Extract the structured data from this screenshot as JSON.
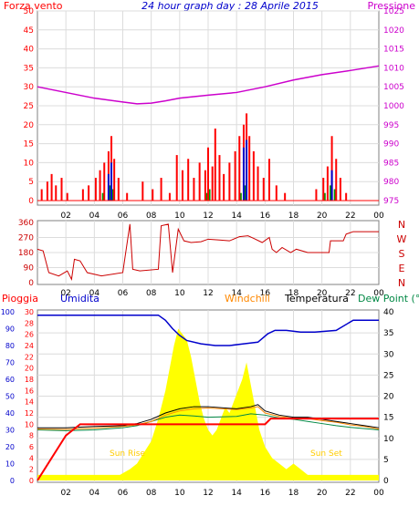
{
  "header": {
    "left_label": "Forza vento",
    "title": "24 hour graph day : 28 Aprile 2015",
    "right_label": "Pressione"
  },
  "colors": {
    "wind": "#ff0000",
    "gust_alt": "#0000cc",
    "wind_green": "#009900",
    "pressure": "#cc00cc",
    "direction": "#cc0000",
    "humidity": "#0000cc",
    "rain": "#ff0000",
    "windchill": "#ff8800",
    "temperature": "#000000",
    "dewpoint": "#008844",
    "sun": "#ffff00",
    "sun_label": "#ffcc00",
    "grid": "#dcdcdc"
  },
  "chart_data": [
    {
      "type": "line",
      "name": "wind-pressure",
      "xlabel": "",
      "x_ticks": [
        "02",
        "04",
        "06",
        "08",
        "10",
        "12",
        "14",
        "16",
        "18",
        "20",
        "22",
        "00"
      ],
      "xlim": [
        0,
        24
      ],
      "ylim_left": [
        0,
        50
      ],
      "y_ticks_left": [
        0,
        5,
        10,
        15,
        20,
        25,
        30,
        35,
        40,
        45,
        50
      ],
      "ylim_right": [
        975,
        1025
      ],
      "y_ticks_right": [
        975,
        980,
        985,
        990,
        995,
        1000,
        1005,
        1010,
        1015,
        1020,
        1025
      ],
      "pressure": [
        [
          0,
          1005.0
        ],
        [
          2,
          1003.5
        ],
        [
          4,
          1002.0
        ],
        [
          6,
          1001.0
        ],
        [
          7,
          1000.5
        ],
        [
          8,
          1000.7
        ],
        [
          9,
          1001.3
        ],
        [
          10,
          1002.0
        ],
        [
          12,
          1002.8
        ],
        [
          14,
          1003.5
        ],
        [
          16,
          1005.0
        ],
        [
          18,
          1006.8
        ],
        [
          20,
          1008.2
        ],
        [
          22,
          1009.3
        ],
        [
          24,
          1010.5
        ]
      ],
      "wind_peaks": [
        [
          0.3,
          3
        ],
        [
          0.7,
          5
        ],
        [
          1.0,
          7
        ],
        [
          1.3,
          4
        ],
        [
          1.7,
          6
        ],
        [
          2.1,
          2
        ],
        [
          3.2,
          3
        ],
        [
          3.6,
          4
        ],
        [
          4.1,
          6
        ],
        [
          4.4,
          8
        ],
        [
          4.7,
          10
        ],
        [
          5.0,
          13
        ],
        [
          5.2,
          17
        ],
        [
          5.4,
          11
        ],
        [
          5.7,
          6
        ],
        [
          6.3,
          2
        ],
        [
          7.4,
          5
        ],
        [
          8.1,
          3
        ],
        [
          8.7,
          6
        ],
        [
          9.3,
          2
        ],
        [
          9.8,
          12
        ],
        [
          10.2,
          8
        ],
        [
          10.6,
          11
        ],
        [
          11.0,
          6
        ],
        [
          11.4,
          10
        ],
        [
          11.8,
          8
        ],
        [
          12.0,
          14
        ],
        [
          12.3,
          9
        ],
        [
          12.5,
          19
        ],
        [
          12.8,
          12
        ],
        [
          13.1,
          7
        ],
        [
          13.5,
          10
        ],
        [
          13.9,
          13
        ],
        [
          14.2,
          17
        ],
        [
          14.5,
          20
        ],
        [
          14.7,
          23
        ],
        [
          14.9,
          17
        ],
        [
          15.2,
          13
        ],
        [
          15.5,
          9
        ],
        [
          15.9,
          6
        ],
        [
          16.3,
          11
        ],
        [
          16.8,
          4
        ],
        [
          17.4,
          2
        ],
        [
          19.6,
          3
        ],
        [
          20.1,
          6
        ],
        [
          20.4,
          9
        ],
        [
          20.7,
          17
        ],
        [
          21.0,
          11
        ],
        [
          21.3,
          6
        ],
        [
          21.7,
          2
        ]
      ],
      "gust_peaks": [
        [
          5.0,
          7
        ],
        [
          5.2,
          10
        ],
        [
          14.5,
          14
        ],
        [
          14.7,
          16
        ],
        [
          20.7,
          8
        ]
      ],
      "green_peaks": [
        [
          4.6,
          2
        ],
        [
          5.1,
          4
        ],
        [
          5.3,
          3
        ],
        [
          11.9,
          2
        ],
        [
          12.1,
          3
        ],
        [
          14.3,
          2
        ],
        [
          14.6,
          4
        ],
        [
          20.2,
          2
        ],
        [
          20.6,
          4
        ],
        [
          20.9,
          3
        ]
      ]
    },
    {
      "type": "line",
      "name": "wind-direction",
      "xlim": [
        0,
        24
      ],
      "ylim": [
        0,
        360
      ],
      "y_ticks": [
        0,
        90,
        180,
        270,
        360
      ],
      "compass": [
        "N",
        "W",
        "S",
        "E",
        "N"
      ],
      "x_ticks": [
        "02",
        "04",
        "06",
        "08",
        "10",
        "12",
        "14",
        "16",
        "18",
        "20",
        "22",
        "00"
      ],
      "values": [
        [
          0.0,
          200
        ],
        [
          0.4,
          190
        ],
        [
          0.8,
          60
        ],
        [
          1.5,
          40
        ],
        [
          2.1,
          70
        ],
        [
          2.4,
          20
        ],
        [
          2.6,
          140
        ],
        [
          3.0,
          130
        ],
        [
          3.5,
          60
        ],
        [
          4.5,
          40
        ],
        [
          6.0,
          60
        ],
        [
          6.5,
          350
        ],
        [
          6.7,
          80
        ],
        [
          7.2,
          70
        ],
        [
          8.5,
          80
        ],
        [
          8.7,
          340
        ],
        [
          9.2,
          350
        ],
        [
          9.5,
          60
        ],
        [
          9.9,
          320
        ],
        [
          10.3,
          250
        ],
        [
          10.8,
          240
        ],
        [
          11.5,
          245
        ],
        [
          12.0,
          260
        ],
        [
          12.8,
          255
        ],
        [
          13.5,
          250
        ],
        [
          14.2,
          275
        ],
        [
          14.8,
          280
        ],
        [
          15.2,
          265
        ],
        [
          15.8,
          240
        ],
        [
          16.3,
          270
        ],
        [
          16.5,
          200
        ],
        [
          16.8,
          180
        ],
        [
          17.2,
          210
        ],
        [
          17.8,
          180
        ],
        [
          18.2,
          200
        ],
        [
          19.0,
          180
        ],
        [
          20.5,
          180
        ],
        [
          20.6,
          250
        ],
        [
          21.5,
          250
        ],
        [
          21.7,
          290
        ],
        [
          22.2,
          305
        ],
        [
          24,
          305
        ]
      ]
    },
    {
      "type": "line",
      "name": "rain-humidity-temperature",
      "legend": [
        "Pioggia",
        "Umidita",
        "Windchill",
        "Temperatura",
        "Dew Point (°C"
      ],
      "xlim": [
        0,
        24
      ],
      "x_ticks": [
        "02",
        "04",
        "06",
        "08",
        "10",
        "12",
        "14",
        "16",
        "18",
        "20",
        "22",
        "00"
      ],
      "y_ticks_humidity": [
        0,
        10,
        20,
        30,
        40,
        50,
        60,
        70,
        80,
        90,
        100
      ],
      "y_ticks_rain": [
        0,
        2,
        4,
        6,
        8,
        10,
        12,
        14,
        16,
        18,
        20,
        22,
        24,
        26,
        28,
        30
      ],
      "y_ticks_temp": [
        0,
        5,
        10,
        15,
        20,
        25,
        30,
        35,
        40
      ],
      "ylim_temp": [
        0,
        40
      ],
      "sun_rise_label": "Sun Rise",
      "sun_set_label": "Sun Set",
      "humidity": [
        [
          0,
          98
        ],
        [
          8.5,
          98
        ],
        [
          9.0,
          95
        ],
        [
          9.5,
          90
        ],
        [
          10.0,
          86
        ],
        [
          10.5,
          83
        ],
        [
          11.5,
          81
        ],
        [
          12.5,
          80
        ],
        [
          13.5,
          80
        ],
        [
          14.5,
          81
        ],
        [
          15.5,
          82
        ],
        [
          16.2,
          87
        ],
        [
          16.7,
          89
        ],
        [
          17.5,
          89
        ],
        [
          18.5,
          88
        ],
        [
          19.5,
          88
        ],
        [
          21.0,
          89
        ],
        [
          22.2,
          95
        ],
        [
          24,
          95
        ]
      ],
      "rain_mm": [
        [
          0,
          0
        ],
        [
          0.5,
          2
        ],
        [
          1.0,
          4
        ],
        [
          1.5,
          6
        ],
        [
          2.0,
          8
        ],
        [
          2.5,
          9
        ],
        [
          3.0,
          10
        ],
        [
          5.0,
          10
        ],
        [
          9.0,
          10
        ],
        [
          14.0,
          10
        ],
        [
          16.0,
          10
        ],
        [
          16.4,
          11
        ],
        [
          24,
          11
        ]
      ],
      "temperature": [
        [
          0,
          12.5
        ],
        [
          2,
          12.5
        ],
        [
          4,
          12.8
        ],
        [
          6,
          13.0
        ],
        [
          7,
          13.5
        ],
        [
          8,
          14.5
        ],
        [
          9,
          16.0
        ],
        [
          10,
          17.0
        ],
        [
          11,
          17.5
        ],
        [
          12,
          17.5
        ],
        [
          14,
          17.0
        ],
        [
          15,
          17.5
        ],
        [
          15.5,
          18.0
        ],
        [
          16,
          16.5
        ],
        [
          17,
          15.5
        ],
        [
          18,
          15.0
        ],
        [
          19,
          15.0
        ],
        [
          20,
          14.5
        ],
        [
          21,
          14.0
        ],
        [
          22,
          13.5
        ],
        [
          23,
          13.0
        ],
        [
          24,
          12.5
        ]
      ],
      "windchill": [
        [
          0,
          12.2
        ],
        [
          2,
          12.1
        ],
        [
          4,
          12.4
        ],
        [
          6,
          12.8
        ],
        [
          7,
          13.2
        ],
        [
          8,
          14.0
        ],
        [
          9,
          15.5
        ],
        [
          10,
          16.5
        ],
        [
          11,
          17.0
        ],
        [
          12,
          17.2
        ],
        [
          14,
          16.8
        ],
        [
          15,
          17.2
        ],
        [
          15.5,
          17.5
        ],
        [
          16,
          16.0
        ],
        [
          17,
          15.2
        ],
        [
          18,
          14.7
        ],
        [
          19,
          14.7
        ],
        [
          20,
          14.2
        ],
        [
          21,
          13.8
        ],
        [
          22,
          13.2
        ],
        [
          23,
          12.8
        ],
        [
          24,
          12.2
        ]
      ],
      "dewpoint": [
        [
          0,
          12.0
        ],
        [
          2,
          11.8
        ],
        [
          4,
          12.0
        ],
        [
          6,
          12.5
        ],
        [
          7,
          13.0
        ],
        [
          8,
          14.0
        ],
        [
          9,
          15.0
        ],
        [
          10,
          15.5
        ],
        [
          11,
          15.3
        ],
        [
          12,
          15.0
        ],
        [
          14,
          15.2
        ],
        [
          15,
          15.8
        ],
        [
          16,
          15.5
        ],
        [
          17,
          14.8
        ],
        [
          18,
          14.5
        ],
        [
          19,
          14.0
        ],
        [
          20,
          13.5
        ],
        [
          21,
          13.0
        ],
        [
          22,
          12.6
        ],
        [
          23,
          12.3
        ],
        [
          24,
          12.0
        ]
      ],
      "solar": [
        [
          0,
          1
        ],
        [
          5.8,
          1
        ],
        [
          6.5,
          2
        ],
        [
          7.0,
          3
        ],
        [
          7.5,
          5
        ],
        [
          8.0,
          7
        ],
        [
          8.5,
          11
        ],
        [
          9.0,
          16
        ],
        [
          9.3,
          20
        ],
        [
          9.6,
          24
        ],
        [
          9.9,
          27
        ],
        [
          10.2,
          26
        ],
        [
          10.5,
          25
        ],
        [
          10.8,
          22
        ],
        [
          11.1,
          18
        ],
        [
          11.4,
          14
        ],
        [
          11.7,
          11
        ],
        [
          12.0,
          9
        ],
        [
          12.3,
          8
        ],
        [
          12.6,
          9
        ],
        [
          12.9,
          11
        ],
        [
          13.2,
          13
        ],
        [
          13.5,
          12
        ],
        [
          13.8,
          14
        ],
        [
          14.1,
          16
        ],
        [
          14.4,
          18
        ],
        [
          14.7,
          21
        ],
        [
          15.0,
          17
        ],
        [
          15.3,
          13
        ],
        [
          15.6,
          9
        ],
        [
          16.0,
          6
        ],
        [
          16.5,
          4
        ],
        [
          17.0,
          3
        ],
        [
          17.5,
          2
        ],
        [
          18.0,
          3
        ],
        [
          18.5,
          2
        ],
        [
          19.0,
          1
        ],
        [
          19.5,
          1
        ],
        [
          24,
          1
        ]
      ]
    }
  ]
}
